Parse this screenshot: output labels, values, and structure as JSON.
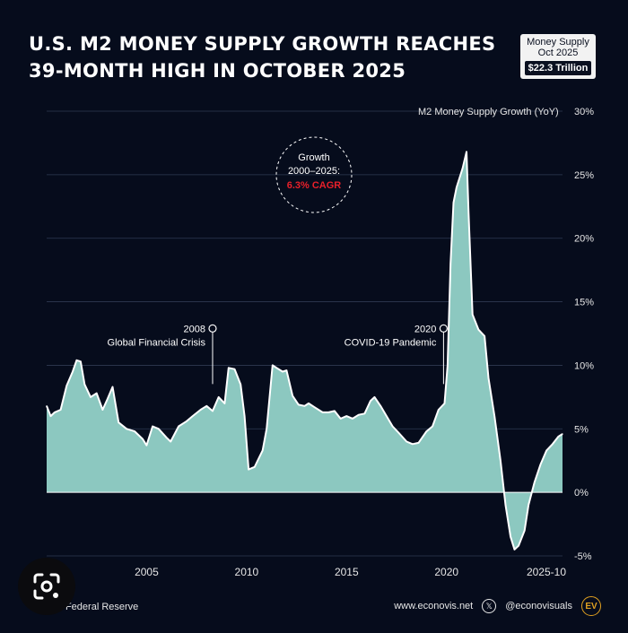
{
  "title_lines": [
    "U.S. M2 MONEY SUPPLY GROWTH REACHES",
    "39-MONTH HIGH IN OCTOBER 2025"
  ],
  "badge": {
    "line1": "Money Supply",
    "line2": "Oct 2025",
    "value": "$22.3 Trillion"
  },
  "footer": {
    "source": "Source: Federal Reserve",
    "website": "www.econovis.net",
    "handle": "@econovisuals",
    "logo_text": "EV"
  },
  "icons": [
    "x-logo-icon",
    "econovis-logo-icon",
    "google-lens-icon"
  ],
  "colors": {
    "background": "#060c1c",
    "area_fill": "#8cc8c0",
    "line": "#ffffff",
    "cagr_text": "#e8202a"
  },
  "chart_data": {
    "type": "area",
    "ylabel": "M2 Money Supply Growth (YoY)",
    "ylim": [
      -5,
      30
    ],
    "yticks": [
      -5,
      0,
      5,
      10,
      15,
      20,
      25,
      30
    ],
    "ytick_labels": [
      "-5%",
      "0%",
      "5%",
      "10%",
      "15%",
      "20%",
      "25%",
      "30%"
    ],
    "xlim": [
      2000.0,
      2025.8
    ],
    "xtick_labels": [
      {
        "x": 2005,
        "label": "2005"
      },
      {
        "x": 2010,
        "label": "2010"
      },
      {
        "x": 2015,
        "label": "2015"
      },
      {
        "x": 2020,
        "label": "2020"
      },
      {
        "x": 2025.8,
        "label": "2025-10"
      }
    ],
    "grid": true,
    "x": [
      2000.0,
      2000.2,
      2000.4,
      2000.7,
      2001.0,
      2001.3,
      2001.5,
      2001.7,
      2001.9,
      2002.2,
      2002.5,
      2002.8,
      2003.0,
      2003.3,
      2003.6,
      2004.0,
      2004.4,
      2004.8,
      2005.0,
      2005.3,
      2005.6,
      2006.0,
      2006.2,
      2006.6,
      2007.0,
      2007.3,
      2007.7,
      2008.0,
      2008.3,
      2008.6,
      2008.9,
      2009.1,
      2009.4,
      2009.7,
      2009.9,
      2010.1,
      2010.4,
      2010.8,
      2011.0,
      2011.3,
      2011.5,
      2011.8,
      2012.0,
      2012.3,
      2012.6,
      2012.9,
      2013.1,
      2013.4,
      2013.8,
      2014.1,
      2014.4,
      2014.7,
      2015.0,
      2015.3,
      2015.6,
      2015.9,
      2016.2,
      2016.4,
      2016.7,
      2017.0,
      2017.3,
      2017.6,
      2018.0,
      2018.3,
      2018.6,
      2019.0,
      2019.3,
      2019.6,
      2019.9,
      2020.05,
      2020.2,
      2020.35,
      2020.5,
      2020.8,
      2021.0,
      2021.1,
      2021.3,
      2021.6,
      2021.9,
      2022.1,
      2022.4,
      2022.7,
      2022.95,
      2023.2,
      2023.4,
      2023.6,
      2023.9,
      2024.1,
      2024.4,
      2024.7,
      2025.0,
      2025.3,
      2025.6,
      2025.8
    ],
    "values": [
      6.8,
      6.0,
      6.3,
      6.5,
      8.4,
      9.5,
      10.4,
      10.3,
      8.5,
      7.5,
      7.8,
      6.5,
      7.2,
      8.3,
      5.5,
      5.0,
      4.8,
      4.2,
      3.7,
      5.2,
      5.0,
      4.3,
      4.0,
      5.2,
      5.6,
      6.0,
      6.5,
      6.8,
      6.4,
      7.5,
      7.0,
      9.8,
      9.7,
      8.5,
      6.0,
      1.8,
      2.0,
      3.3,
      5.0,
      10.0,
      9.8,
      9.5,
      9.6,
      7.6,
      6.9,
      6.8,
      7.0,
      6.7,
      6.3,
      6.3,
      6.4,
      5.8,
      6.0,
      5.8,
      6.1,
      6.2,
      7.2,
      7.5,
      6.8,
      6.0,
      5.2,
      4.7,
      4.0,
      3.8,
      3.9,
      4.8,
      5.2,
      6.5,
      7.0,
      10.0,
      18.0,
      22.8,
      24.0,
      25.5,
      26.8,
      22.0,
      14.0,
      12.8,
      12.3,
      9.0,
      6.0,
      2.5,
      -1.0,
      -3.5,
      -4.5,
      -4.2,
      -3.0,
      -1.0,
      0.8,
      2.2,
      3.3,
      3.8,
      4.4,
      4.6
    ],
    "annotations": [
      {
        "year": "2008",
        "text": "Global Financial Crisis",
        "x": 2008.3,
        "y_point": 12.9
      },
      {
        "year": "2020",
        "text": "COVID-19 Pandemic",
        "x": 2019.85,
        "y_point": 12.9
      }
    ],
    "callout": {
      "line1": "Growth",
      "line2": "2000–2025:",
      "line3": "6.3% CAGR"
    }
  }
}
